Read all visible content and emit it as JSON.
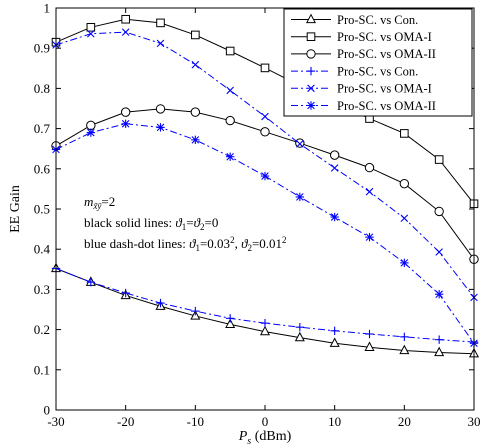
{
  "chart_data": {
    "type": "line",
    "x": [
      -30,
      -25,
      -20,
      -15,
      -10,
      -5,
      0,
      5,
      10,
      15,
      20,
      25,
      30
    ],
    "xlabel_main": "P",
    "xlabel_sub": "s",
    "xlabel_unit": "(dBm)",
    "ylabel": "EE Gain",
    "xlim": [
      -30,
      30
    ],
    "ylim": [
      0,
      1
    ],
    "xticks": [
      -30,
      -20,
      -10,
      0,
      10,
      20,
      30
    ],
    "xtick_labels": [
      "-30",
      "-20",
      "-10",
      "0",
      "10",
      "20",
      "30"
    ],
    "yticks": [
      0,
      0.1,
      0.2,
      0.3,
      0.4,
      0.5,
      0.6,
      0.7,
      0.8,
      0.9,
      1
    ],
    "ytick_labels": [
      "0",
      "0.1",
      "0.2",
      "0.3",
      "0.4",
      "0.5",
      "0.6",
      "0.7",
      "0.8",
      "0.9",
      "1"
    ],
    "grid": false,
    "legend_position": "top-right",
    "annotations": {
      "line1_pre": "m",
      "line1_sub": "x̃ȳ",
      "line1_post": "=2",
      "line2_pre": "black solid lines: ",
      "line2_a": "ϑ",
      "line2_a_sub": "1",
      "line2_mid": "=",
      "line2_b": "ϑ",
      "line2_b_sub": "2",
      "line2_post": "=0",
      "line3_pre": "blue dash-dot lines: ",
      "line3_a": "ϑ",
      "line3_a_sub": "1",
      "line3_a_val": "=0.03",
      "line3_a_sup": "2",
      "line3_sep": ", ",
      "line3_b": "ϑ",
      "line3_b_sub": "2",
      "line3_b_val": "=0.01",
      "line3_b_sup": "2"
    },
    "series": [
      {
        "name": "Pro-SC. vs Con.",
        "color": "#000000",
        "dash": "solid",
        "marker": "triangle",
        "values": [
          0.352,
          0.318,
          0.285,
          0.258,
          0.234,
          0.213,
          0.195,
          0.18,
          0.166,
          0.156,
          0.148,
          0.143,
          0.14
        ]
      },
      {
        "name": "Pro-SC. vs OMA-I",
        "color": "#000000",
        "dash": "solid",
        "marker": "square",
        "values": [
          0.915,
          0.952,
          0.972,
          0.963,
          0.933,
          0.893,
          0.851,
          0.807,
          0.764,
          0.725,
          0.688,
          0.623,
          0.513
        ]
      },
      {
        "name": "Pro-SC. vs OMA-II",
        "color": "#000000",
        "dash": "solid",
        "marker": "circle",
        "values": [
          0.657,
          0.708,
          0.741,
          0.749,
          0.741,
          0.72,
          0.692,
          0.664,
          0.634,
          0.603,
          0.563,
          0.494,
          0.375
        ]
      },
      {
        "name": "Pro-SC. vs Con.",
        "color": "#0000ff",
        "dash": "dashdot",
        "marker": "plus",
        "values": [
          0.352,
          0.318,
          0.291,
          0.266,
          0.246,
          0.228,
          0.216,
          0.206,
          0.197,
          0.189,
          0.182,
          0.175,
          0.169
        ]
      },
      {
        "name": "Pro-SC. vs OMA-I",
        "color": "#0000ff",
        "dash": "dashdot",
        "marker": "x",
        "values": [
          0.908,
          0.936,
          0.94,
          0.912,
          0.859,
          0.795,
          0.73,
          0.662,
          0.602,
          0.543,
          0.477,
          0.393,
          0.28
        ]
      },
      {
        "name": "Pro-SC. vs OMA-II",
        "color": "#0000ff",
        "dash": "dashdot",
        "marker": "star",
        "values": [
          0.648,
          0.69,
          0.712,
          0.703,
          0.672,
          0.63,
          0.582,
          0.53,
          0.48,
          0.43,
          0.366,
          0.288,
          0.166
        ]
      }
    ]
  }
}
